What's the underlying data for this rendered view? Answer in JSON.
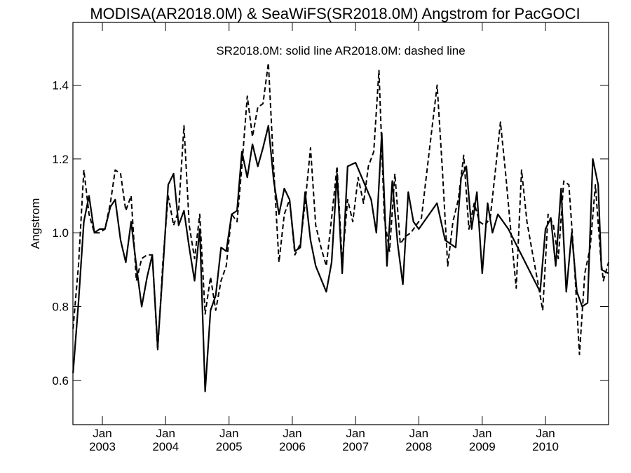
{
  "chart_data": {
    "type": "line",
    "title": "MODISA(AR2018.0M) & SeaWiFS(SR2018.0M)  Angstrom for PacGOCI",
    "annotation": "SR2018.0M: solid line   AR2018.0M: dashed line",
    "xlabel": "",
    "ylabel": "Angstrom",
    "xlim": [
      "2002-07-15",
      "2010-12-31"
    ],
    "ylim": [
      0.48,
      1.57
    ],
    "yticks": [
      0.6,
      0.8,
      1.0,
      1.2,
      1.4
    ],
    "ytick_labels": [
      "0.6",
      "0.8",
      "1.0",
      "1.2",
      "1.4"
    ],
    "xticks": [
      {
        "date": "2003-01-01",
        "month": "Jan",
        "year": "2003"
      },
      {
        "date": "2004-01-01",
        "month": "Jan",
        "year": "2004"
      },
      {
        "date": "2005-01-01",
        "month": "Jan",
        "year": "2005"
      },
      {
        "date": "2006-01-01",
        "month": "Jan",
        "year": "2006"
      },
      {
        "date": "2007-01-01",
        "month": "Jan",
        "year": "2007"
      },
      {
        "date": "2008-01-01",
        "month": "Jan",
        "year": "2008"
      },
      {
        "date": "2009-01-01",
        "month": "Jan",
        "year": "2009"
      },
      {
        "date": "2010-01-01",
        "month": "Jan",
        "year": "2010"
      }
    ],
    "grid": false,
    "series": [
      {
        "name": "SR2018.0M",
        "style": "solid",
        "color": "#000000",
        "points": [
          [
            "2002-07-16",
            0.62
          ],
          [
            "2002-08-16",
            0.81
          ],
          [
            "2002-09-16",
            1.03
          ],
          [
            "2002-10-16",
            1.1
          ],
          [
            "2002-11-16",
            1.0
          ],
          [
            "2002-12-16",
            1.01
          ],
          [
            "2003-01-16",
            1.01
          ],
          [
            "2003-02-16",
            1.07
          ],
          [
            "2003-03-16",
            1.09
          ],
          [
            "2003-04-16",
            0.98
          ],
          [
            "2003-05-16",
            0.92
          ],
          [
            "2003-06-16",
            1.03
          ],
          [
            "2003-07-16",
            0.91
          ],
          [
            "2003-08-16",
            0.8
          ],
          [
            "2003-09-16",
            0.88
          ],
          [
            "2003-10-16",
            0.94
          ],
          [
            "2003-11-16",
            0.69
          ],
          [
            "2003-12-16",
            0.9
          ],
          [
            "2004-01-16",
            1.13
          ],
          [
            "2004-02-16",
            1.16
          ],
          [
            "2004-03-16",
            1.02
          ],
          [
            "2004-04-16",
            1.06
          ],
          [
            "2004-05-16",
            0.96
          ],
          [
            "2004-06-16",
            0.87
          ],
          [
            "2004-07-16",
            1.01
          ],
          [
            "2004-08-16",
            0.57
          ],
          [
            "2004-09-16",
            0.79
          ],
          [
            "2004-10-16",
            0.83
          ],
          [
            "2004-11-16",
            0.96
          ],
          [
            "2004-12-16",
            0.95
          ],
          [
            "2005-01-16",
            1.05
          ],
          [
            "2005-02-16",
            1.06
          ],
          [
            "2005-03-16",
            1.22
          ],
          [
            "2005-04-16",
            1.15
          ],
          [
            "2005-05-16",
            1.24
          ],
          [
            "2005-06-16",
            1.18
          ],
          [
            "2005-07-16",
            1.23
          ],
          [
            "2005-08-16",
            1.29
          ],
          [
            "2005-09-16",
            1.14
          ],
          [
            "2005-10-16",
            1.05
          ],
          [
            "2005-11-16",
            1.12
          ],
          [
            "2005-12-16",
            1.09
          ],
          [
            "2006-01-16",
            0.95
          ],
          [
            "2006-02-16",
            0.96
          ],
          [
            "2006-03-16",
            1.11
          ],
          [
            "2006-04-16",
            0.98
          ],
          [
            "2006-05-16",
            0.91
          ],
          [
            "2006-07-16",
            0.84
          ],
          [
            "2006-08-16",
            0.92
          ],
          [
            "2006-09-16",
            1.16
          ],
          [
            "2006-10-16",
            0.89
          ],
          [
            "2006-11-16",
            1.18
          ],
          [
            "2007-01-01",
            1.19
          ],
          [
            "2007-04-01",
            1.09
          ],
          [
            "2007-05-01",
            1.0
          ],
          [
            "2007-06-01",
            1.27
          ],
          [
            "2007-07-01",
            0.91
          ],
          [
            "2007-08-01",
            1.14
          ],
          [
            "2007-09-01",
            0.97
          ],
          [
            "2007-10-01",
            0.86
          ],
          [
            "2007-11-01",
            1.11
          ],
          [
            "2007-12-01",
            1.03
          ],
          [
            "2008-01-01",
            1.01
          ],
          [
            "2008-04-15",
            1.08
          ],
          [
            "2008-06-01",
            0.98
          ],
          [
            "2008-08-01",
            0.96
          ],
          [
            "2008-09-01",
            1.15
          ],
          [
            "2008-10-01",
            1.18
          ],
          [
            "2008-11-01",
            1.01
          ],
          [
            "2008-12-01",
            1.11
          ],
          [
            "2009-01-01",
            0.89
          ],
          [
            "2009-02-01",
            1.08
          ],
          [
            "2009-03-01",
            1.0
          ],
          [
            "2009-04-01",
            1.05
          ],
          [
            "2009-06-01",
            1.01
          ],
          [
            "2009-12-01",
            0.84
          ],
          [
            "2010-01-01",
            1.01
          ],
          [
            "2010-02-01",
            1.04
          ],
          [
            "2010-03-01",
            0.91
          ],
          [
            "2010-04-01",
            1.12
          ],
          [
            "2010-05-01",
            0.84
          ],
          [
            "2010-06-01",
            1.0
          ],
          [
            "2010-07-01",
            0.84
          ],
          [
            "2010-08-01",
            0.8
          ],
          [
            "2010-09-01",
            0.81
          ],
          [
            "2010-10-01",
            1.2
          ],
          [
            "2010-11-01",
            1.13
          ],
          [
            "2010-11-20",
            0.9
          ],
          [
            "2010-12-31",
            0.89
          ]
        ]
      },
      {
        "name": "AR2018.0M",
        "style": "dashed",
        "color": "#000000",
        "points": [
          [
            "2002-07-16",
            0.74
          ],
          [
            "2002-08-16",
            0.91
          ],
          [
            "2002-09-16",
            1.17
          ],
          [
            "2002-10-16",
            1.05
          ],
          [
            "2002-11-16",
            1.0
          ],
          [
            "2002-12-16",
            1.0
          ],
          [
            "2003-01-16",
            1.01
          ],
          [
            "2003-02-16",
            1.08
          ],
          [
            "2003-03-16",
            1.17
          ],
          [
            "2003-04-16",
            1.16
          ],
          [
            "2003-05-16",
            1.06
          ],
          [
            "2003-06-16",
            1.1
          ],
          [
            "2003-07-16",
            0.87
          ],
          [
            "2003-08-16",
            0.93
          ],
          [
            "2003-09-16",
            0.94
          ],
          [
            "2003-10-16",
            0.94
          ],
          [
            "2003-11-16",
            0.68
          ],
          [
            "2003-12-16",
            0.92
          ],
          [
            "2004-01-16",
            1.1
          ],
          [
            "2004-02-16",
            1.02
          ],
          [
            "2004-03-16",
            1.06
          ],
          [
            "2004-04-16",
            1.29
          ],
          [
            "2004-05-16",
            1.02
          ],
          [
            "2004-06-16",
            0.93
          ],
          [
            "2004-07-16",
            1.05
          ],
          [
            "2004-08-16",
            0.78
          ],
          [
            "2004-09-16",
            0.88
          ],
          [
            "2004-10-16",
            0.79
          ],
          [
            "2004-11-16",
            0.87
          ],
          [
            "2004-12-16",
            0.91
          ],
          [
            "2005-01-16",
            1.05
          ],
          [
            "2005-02-16",
            1.03
          ],
          [
            "2005-03-16",
            1.18
          ],
          [
            "2005-04-16",
            1.37
          ],
          [
            "2005-05-16",
            1.26
          ],
          [
            "2005-06-16",
            1.34
          ],
          [
            "2005-07-16",
            1.35
          ],
          [
            "2005-08-16",
            1.46
          ],
          [
            "2005-09-16",
            1.17
          ],
          [
            "2005-10-16",
            0.92
          ],
          [
            "2005-11-16",
            1.05
          ],
          [
            "2005-12-16",
            1.09
          ],
          [
            "2006-01-16",
            0.94
          ],
          [
            "2006-02-16",
            0.97
          ],
          [
            "2006-03-16",
            1.08
          ],
          [
            "2006-04-16",
            1.23
          ],
          [
            "2006-05-16",
            1.02
          ],
          [
            "2006-06-16",
            0.96
          ],
          [
            "2006-07-16",
            0.91
          ],
          [
            "2006-08-16",
            1.04
          ],
          [
            "2006-09-16",
            1.18
          ],
          [
            "2006-10-16",
            0.92
          ],
          [
            "2006-11-16",
            1.09
          ],
          [
            "2006-12-16",
            1.03
          ],
          [
            "2007-01-16",
            1.15
          ],
          [
            "2007-02-16",
            1.08
          ],
          [
            "2007-03-16",
            1.18
          ],
          [
            "2007-04-16",
            1.22
          ],
          [
            "2007-05-16",
            1.44
          ],
          [
            "2007-06-16",
            1.04
          ],
          [
            "2007-07-16",
            0.95
          ],
          [
            "2007-08-16",
            1.16
          ],
          [
            "2007-09-16",
            0.97
          ],
          [
            "2007-10-16",
            0.99
          ],
          [
            "2007-11-16",
            1.0
          ],
          [
            "2007-12-16",
            1.02
          ],
          [
            "2008-01-16",
            1.04
          ],
          [
            "2008-03-01",
            1.22
          ],
          [
            "2008-04-16",
            1.4
          ],
          [
            "2008-05-16",
            1.17
          ],
          [
            "2008-06-16",
            0.91
          ],
          [
            "2008-07-16",
            1.03
          ],
          [
            "2008-08-16",
            1.09
          ],
          [
            "2008-09-16",
            1.21
          ],
          [
            "2008-10-16",
            1.01
          ],
          [
            "2008-11-16",
            1.08
          ],
          [
            "2008-12-16",
            1.03
          ],
          [
            "2009-01-16",
            1.02
          ],
          [
            "2009-02-16",
            1.04
          ],
          [
            "2009-03-16",
            1.16
          ],
          [
            "2009-04-16",
            1.3
          ],
          [
            "2009-05-16",
            1.16
          ],
          [
            "2009-06-16",
            1.0
          ],
          [
            "2009-07-16",
            0.85
          ],
          [
            "2009-08-16",
            1.17
          ],
          [
            "2009-09-16",
            1.03
          ],
          [
            "2009-10-16",
            0.95
          ],
          [
            "2009-11-16",
            0.87
          ],
          [
            "2009-12-16",
            0.79
          ],
          [
            "2010-01-16",
            1.05
          ],
          [
            "2010-02-16",
            1.02
          ],
          [
            "2010-03-16",
            0.93
          ],
          [
            "2010-04-16",
            1.14
          ],
          [
            "2010-05-16",
            1.13
          ],
          [
            "2010-06-16",
            0.92
          ],
          [
            "2010-07-16",
            0.67
          ],
          [
            "2010-08-16",
            0.89
          ],
          [
            "2010-09-16",
            0.96
          ],
          [
            "2010-10-16",
            1.13
          ],
          [
            "2010-11-16",
            0.93
          ],
          [
            "2010-12-01",
            0.87
          ],
          [
            "2010-12-31",
            0.92
          ]
        ]
      }
    ]
  }
}
